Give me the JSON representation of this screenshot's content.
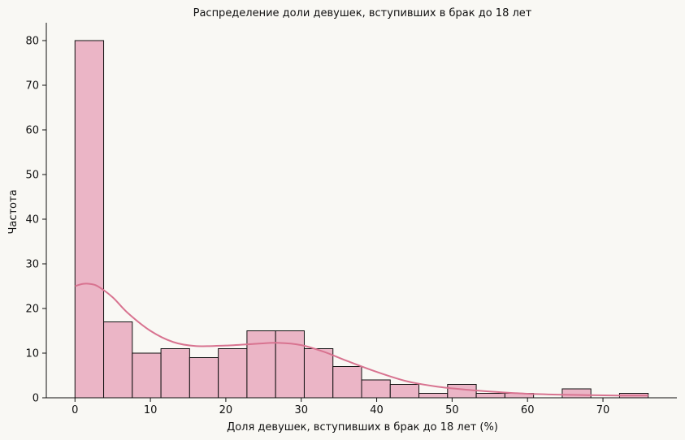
{
  "chart_data": {
    "type": "bar",
    "title": "Распределение доли девушек, вступивших в брак до 18 лет",
    "xlabel": "Доля девушек, вступивших в брак до 18 лет (%)",
    "ylabel": "Частота",
    "xlim": [
      -3.8,
      79.8
    ],
    "ylim": [
      0,
      84
    ],
    "xticks": [
      0,
      10,
      20,
      30,
      40,
      50,
      60,
      70
    ],
    "yticks": [
      0,
      10,
      20,
      30,
      40,
      50,
      60,
      70,
      80
    ],
    "bin_edges": [
      0,
      3.8,
      7.6,
      11.4,
      15.2,
      19.0,
      22.8,
      26.6,
      30.4,
      34.2,
      38.0,
      41.8,
      45.6,
      49.4,
      53.2,
      57.0,
      60.8,
      64.6,
      68.4,
      72.2,
      76.0
    ],
    "values": [
      80,
      17,
      10,
      11,
      9,
      11,
      15,
      15,
      11,
      7,
      4,
      3,
      1,
      3,
      1,
      1,
      0,
      2,
      0,
      1
    ],
    "kde": {
      "x": [
        0,
        1,
        2,
        3,
        5,
        7,
        10,
        13,
        16,
        20,
        24,
        27,
        30,
        33,
        36,
        40,
        44,
        48,
        52,
        56,
        60,
        64,
        68,
        72,
        76
      ],
      "y": [
        25,
        25.5,
        25.5,
        25.0,
        22.5,
        19.0,
        15.0,
        12.5,
        11.6,
        11.7,
        12.1,
        12.3,
        11.8,
        10.3,
        8.3,
        5.8,
        3.7,
        2.5,
        1.8,
        1.3,
        0.9,
        0.7,
        0.6,
        0.5,
        0.5
      ]
    },
    "colors": {
      "bar_fill": "#ebb5c6",
      "bar_edge": "#111111",
      "kde_line": "#d87390"
    },
    "grid": false,
    "legend": false
  }
}
